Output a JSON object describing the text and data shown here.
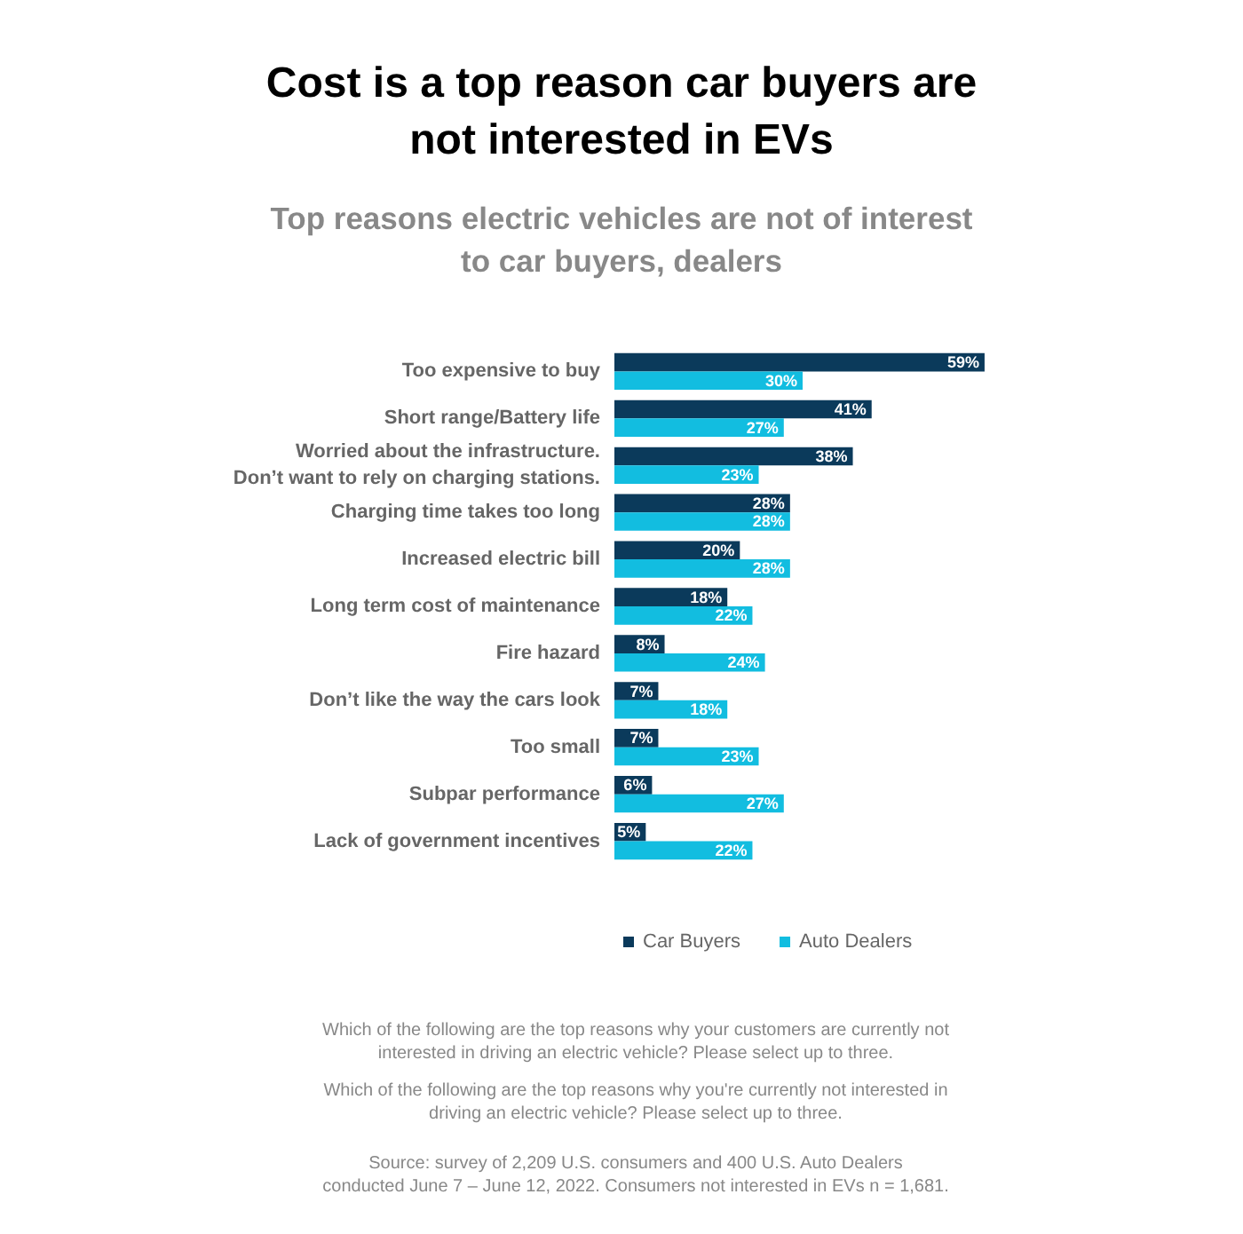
{
  "chart_data": {
    "type": "bar",
    "orientation": "horizontal",
    "title": "Cost is a top reason car buyers are\nnot interested in EVs",
    "subtitle": "Top reasons electric vehicles are not of interest\nto car buyers, dealers",
    "categories": [
      "Too expensive to buy",
      "Short range/Battery life",
      "Worried about the infrastructure.\nDon’t want to rely on charging stations.",
      "Charging time takes too long",
      "Increased electric bill",
      "Long term cost of maintenance",
      "Fire hazard",
      "Don’t like the way the cars look",
      "Too small",
      "Subpar performance",
      "Lack of government incentives"
    ],
    "series": [
      {
        "name": "Car Buyers",
        "color": "#0b3a5b",
        "values": [
          59,
          41,
          38,
          28,
          20,
          18,
          8,
          7,
          7,
          6,
          5
        ],
        "value_labels": [
          "59%",
          "41%",
          "38%",
          "28%",
          "20%",
          "18%",
          "8%",
          "7%",
          "7%",
          "6%",
          "5%"
        ]
      },
      {
        "name": "Auto Dealers",
        "color": "#12bde0",
        "values": [
          30,
          27,
          23,
          28,
          28,
          22,
          24,
          18,
          23,
          27,
          22
        ],
        "value_labels": [
          "30%",
          "27%",
          "23%",
          "28%",
          "28%",
          "22%",
          "24%",
          "18%",
          "23%",
          "27%",
          "22%"
        ]
      }
    ],
    "legend": "bottom",
    "annotations": [
      "Which of the following are the top reasons why your customers are currently not\ninterested in driving an electric vehicle? Please select up to three.",
      "Which of the following are the top reasons why you're currently not interested in\ndriving an electric vehicle? Please select up to three.",
      "Source: survey of 2,209 U.S. consumers and 400 U.S. Auto Dealers\nconducted June 7 – June 12, 2022. Consumers not interested in EVs n = 1,681."
    ]
  }
}
